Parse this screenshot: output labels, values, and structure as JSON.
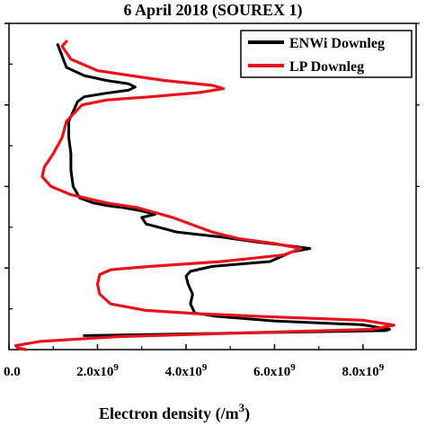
{
  "chart_data": {
    "type": "line",
    "title": "6 April 2018 (SOUREX 1)",
    "xlabel": "Electron density (/m",
    "xlabel_sup": "3",
    "ylabel": "",
    "xlim": [
      0,
      9200000000.0
    ],
    "ylim": [
      0,
      1
    ],
    "x_ticks": [
      {
        "value": 0,
        "mantissa": "0.0",
        "exp": ""
      },
      {
        "value": 2000000000.0,
        "mantissa": "2.0x10",
        "exp": "9"
      },
      {
        "value": 4000000000.0,
        "mantissa": "4.0x10",
        "exp": "9"
      },
      {
        "value": 6000000000.0,
        "mantissa": "6.0x10",
        "exp": "9"
      },
      {
        "value": 8000000000.0,
        "mantissa": "8.0x10",
        "exp": "9"
      }
    ],
    "y_major_ticks": [
      0.25,
      0.5,
      0.75,
      1.0
    ],
    "y_minor_ticks": [
      0.125,
      0.375,
      0.625,
      0.875
    ],
    "legend_position": "top-right",
    "grid": false,
    "series": [
      {
        "name": "ENWi Downleg",
        "color": "#000000",
        "points": [
          [
            1700000000.0,
            0.043
          ],
          [
            8500000000.0,
            0.058
          ],
          [
            8600000000.0,
            0.062
          ],
          [
            8000000000.0,
            0.076
          ],
          [
            6000000000.0,
            0.088
          ],
          [
            4700000000.0,
            0.102
          ],
          [
            4200000000.0,
            0.112
          ],
          [
            4100000000.0,
            0.14
          ],
          [
            4150000000.0,
            0.17
          ],
          [
            4050000000.0,
            0.2
          ],
          [
            4000000000.0,
            0.225
          ],
          [
            4100000000.0,
            0.24
          ],
          [
            4600000000.0,
            0.255
          ],
          [
            5900000000.0,
            0.27
          ],
          [
            6400000000.0,
            0.3
          ],
          [
            6800000000.0,
            0.31
          ],
          [
            6200000000.0,
            0.32
          ],
          [
            5600000000.0,
            0.33
          ],
          [
            4800000000.0,
            0.345
          ],
          [
            3800000000.0,
            0.36
          ],
          [
            3100000000.0,
            0.385
          ],
          [
            3000000000.0,
            0.405
          ],
          [
            3300000000.0,
            0.415
          ],
          [
            3000000000.0,
            0.425
          ],
          [
            2600000000.0,
            0.435
          ],
          [
            2200000000.0,
            0.442
          ],
          [
            1900000000.0,
            0.45
          ],
          [
            1600000000.0,
            0.465
          ],
          [
            1450000000.0,
            0.5
          ],
          [
            1400000000.0,
            0.55
          ],
          [
            1400000000.0,
            0.6
          ],
          [
            1350000000.0,
            0.65
          ],
          [
            1350000000.0,
            0.7
          ],
          [
            1500000000.0,
            0.745
          ],
          [
            1550000000.0,
            0.76
          ],
          [
            1700000000.0,
            0.775
          ],
          [
            2200000000.0,
            0.786
          ],
          [
            2700000000.0,
            0.795
          ],
          [
            2850000000.0,
            0.805
          ],
          [
            2700000000.0,
            0.815
          ],
          [
            2200000000.0,
            0.825
          ],
          [
            1700000000.0,
            0.84
          ],
          [
            1300000000.0,
            0.865
          ],
          [
            1200000000.0,
            0.9
          ],
          [
            1100000000.0,
            0.935
          ]
        ]
      },
      {
        "name": "LP Downleg",
        "color": "#e8141c",
        "points": [
          [
            380000000.0,
            0.0
          ],
          [
            200000000.0,
            0.005
          ],
          [
            150000000.0,
            0.012
          ],
          [
            700000000.0,
            0.025
          ],
          [
            2500000000.0,
            0.04
          ],
          [
            5500000000.0,
            0.052
          ],
          [
            8200000000.0,
            0.062
          ],
          [
            8700000000.0,
            0.075
          ],
          [
            8000000000.0,
            0.09
          ],
          [
            6000000000.0,
            0.1
          ],
          [
            4300000000.0,
            0.11
          ],
          [
            3100000000.0,
            0.12
          ],
          [
            2300000000.0,
            0.14
          ],
          [
            2050000000.0,
            0.17
          ],
          [
            2000000000.0,
            0.2
          ],
          [
            2050000000.0,
            0.23
          ],
          [
            2300000000.0,
            0.245
          ],
          [
            3200000000.0,
            0.255
          ],
          [
            4800000000.0,
            0.27
          ],
          [
            6200000000.0,
            0.29
          ],
          [
            6600000000.0,
            0.31
          ],
          [
            6000000000.0,
            0.325
          ],
          [
            5200000000.0,
            0.34
          ],
          [
            4600000000.0,
            0.36
          ],
          [
            4200000000.0,
            0.38
          ],
          [
            3700000000.0,
            0.405
          ],
          [
            3300000000.0,
            0.42
          ],
          [
            2900000000.0,
            0.435
          ],
          [
            2200000000.0,
            0.45
          ],
          [
            1400000000.0,
            0.475
          ],
          [
            950000000.0,
            0.5
          ],
          [
            750000000.0,
            0.53
          ],
          [
            800000000.0,
            0.56
          ],
          [
            1000000000.0,
            0.6
          ],
          [
            1200000000.0,
            0.65
          ],
          [
            1300000000.0,
            0.7
          ],
          [
            1650000000.0,
            0.75
          ],
          [
            2200000000.0,
            0.765
          ],
          [
            3200000000.0,
            0.775
          ],
          [
            4300000000.0,
            0.788
          ],
          [
            4850000000.0,
            0.8
          ],
          [
            4600000000.0,
            0.81
          ],
          [
            3500000000.0,
            0.825
          ],
          [
            2000000000.0,
            0.855
          ],
          [
            1400000000.0,
            0.89
          ],
          [
            1200000000.0,
            0.93
          ],
          [
            1300000000.0,
            0.945
          ]
        ]
      }
    ]
  }
}
